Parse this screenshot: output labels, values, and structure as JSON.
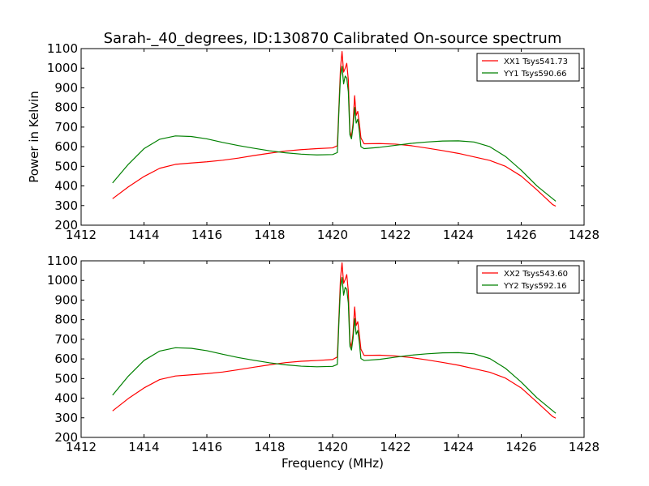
{
  "figure": {
    "title": "Sarah-_40_degrees, ID:130870 Calibrated On-source spectrum",
    "ylabel": "Power in Kelvin",
    "xlabel": "Frequency (MHz)"
  },
  "colors": {
    "xx": "#ff0000",
    "yy": "#008000",
    "axes": "#000000",
    "background": "#ffffff"
  },
  "chart_data": [
    {
      "type": "line",
      "title": "Sarah-_40_degrees, ID:130870 Calibrated On-source spectrum",
      "xlabel": "",
      "ylabel": "Power in Kelvin",
      "xlim": [
        1412,
        1428
      ],
      "ylim": [
        200,
        1100
      ],
      "x_ticks": [
        1412,
        1414,
        1416,
        1418,
        1420,
        1422,
        1424,
        1426,
        1428
      ],
      "y_ticks": [
        200,
        300,
        400,
        500,
        600,
        700,
        800,
        900,
        1000,
        1100
      ],
      "legend_position": "top-right",
      "grid": false,
      "series": [
        {
          "name": "XX1 Tsys541.73",
          "color": "#ff0000",
          "x": [
            1413.0,
            1413.5,
            1414.0,
            1414.5,
            1415.0,
            1415.5,
            1416.0,
            1416.5,
            1417.0,
            1417.5,
            1418.0,
            1418.5,
            1419.0,
            1419.5,
            1420.0,
            1420.15,
            1420.2,
            1420.25,
            1420.3,
            1420.35,
            1420.4,
            1420.45,
            1420.5,
            1420.55,
            1420.6,
            1420.65,
            1420.7,
            1420.75,
            1420.8,
            1420.85,
            1420.9,
            1421.0,
            1421.5,
            1422.0,
            1422.5,
            1423.0,
            1423.5,
            1424.0,
            1424.5,
            1425.0,
            1425.5,
            1426.0,
            1426.5,
            1427.0,
            1427.1
          ],
          "y": [
            335,
            395,
            448,
            490,
            510,
            517,
            523,
            531,
            542,
            555,
            567,
            578,
            585,
            590,
            594,
            605,
            800,
            1000,
            1085,
            980,
            1000,
            1025,
            940,
            680,
            650,
            720,
            860,
            760,
            780,
            720,
            645,
            615,
            616,
            613,
            605,
            593,
            580,
            566,
            548,
            530,
            500,
            450,
            380,
            305,
            297
          ]
        },
        {
          "name": "YY1 Tsys590.66",
          "color": "#008000",
          "x": [
            1413.0,
            1413.5,
            1414.0,
            1414.5,
            1415.0,
            1415.5,
            1416.0,
            1416.5,
            1417.0,
            1417.5,
            1418.0,
            1418.5,
            1419.0,
            1419.5,
            1420.0,
            1420.15,
            1420.2,
            1420.25,
            1420.3,
            1420.35,
            1420.4,
            1420.45,
            1420.5,
            1420.55,
            1420.6,
            1420.65,
            1420.7,
            1420.75,
            1420.8,
            1420.85,
            1420.9,
            1421.0,
            1421.5,
            1422.0,
            1422.5,
            1423.0,
            1423.5,
            1424.0,
            1424.5,
            1425.0,
            1425.5,
            1426.0,
            1426.5,
            1427.0,
            1427.1
          ],
          "y": [
            415,
            510,
            590,
            638,
            655,
            652,
            640,
            622,
            606,
            592,
            579,
            569,
            562,
            558,
            560,
            570,
            780,
            960,
            1010,
            920,
            960,
            950,
            880,
            660,
            640,
            700,
            800,
            720,
            740,
            680,
            600,
            590,
            597,
            607,
            617,
            624,
            629,
            630,
            624,
            600,
            550,
            480,
            400,
            335,
            322
          ]
        }
      ]
    },
    {
      "type": "line",
      "title": "",
      "xlabel": "Frequency (MHz)",
      "ylabel": "",
      "xlim": [
        1412,
        1428
      ],
      "ylim": [
        200,
        1100
      ],
      "x_ticks": [
        1412,
        1414,
        1416,
        1418,
        1420,
        1422,
        1424,
        1426,
        1428
      ],
      "y_ticks": [
        200,
        300,
        400,
        500,
        600,
        700,
        800,
        900,
        1000,
        1100
      ],
      "legend_position": "top-right",
      "grid": false,
      "series": [
        {
          "name": "XX2 Tsys543.60",
          "color": "#ff0000",
          "x": [
            1413.0,
            1413.5,
            1414.0,
            1414.5,
            1415.0,
            1415.5,
            1416.0,
            1416.5,
            1417.0,
            1417.5,
            1418.0,
            1418.5,
            1419.0,
            1419.5,
            1420.0,
            1420.15,
            1420.2,
            1420.25,
            1420.3,
            1420.35,
            1420.4,
            1420.45,
            1420.5,
            1420.55,
            1420.6,
            1420.65,
            1420.7,
            1420.75,
            1420.8,
            1420.85,
            1420.9,
            1421.0,
            1421.5,
            1422.0,
            1422.5,
            1423.0,
            1423.5,
            1424.0,
            1424.5,
            1425.0,
            1425.5,
            1426.0,
            1426.5,
            1427.0,
            1427.1
          ],
          "y": [
            335,
            398,
            452,
            495,
            513,
            519,
            525,
            533,
            545,
            558,
            570,
            581,
            588,
            592,
            597,
            610,
            810,
            1010,
            1090,
            985,
            1005,
            1030,
            945,
            690,
            660,
            730,
            865,
            770,
            790,
            725,
            650,
            618,
            619,
            615,
            607,
            595,
            582,
            568,
            550,
            532,
            502,
            452,
            380,
            306,
            298
          ]
        },
        {
          "name": "YY2 Tsys592.16",
          "color": "#008000",
          "x": [
            1413.0,
            1413.5,
            1414.0,
            1414.5,
            1415.0,
            1415.5,
            1416.0,
            1416.5,
            1417.0,
            1417.5,
            1418.0,
            1418.5,
            1419.0,
            1419.5,
            1420.0,
            1420.15,
            1420.2,
            1420.25,
            1420.3,
            1420.35,
            1420.4,
            1420.45,
            1420.5,
            1420.55,
            1420.6,
            1420.65,
            1420.7,
            1420.75,
            1420.8,
            1420.85,
            1420.9,
            1421.0,
            1421.5,
            1422.0,
            1422.5,
            1423.0,
            1423.5,
            1424.0,
            1424.5,
            1425.0,
            1425.5,
            1426.0,
            1426.5,
            1427.0,
            1427.1
          ],
          "y": [
            415,
            512,
            592,
            640,
            657,
            654,
            642,
            624,
            607,
            593,
            580,
            570,
            563,
            560,
            562,
            572,
            785,
            965,
            1015,
            925,
            965,
            955,
            885,
            665,
            645,
            705,
            805,
            725,
            745,
            685,
            602,
            592,
            598,
            609,
            619,
            626,
            631,
            632,
            626,
            602,
            552,
            482,
            402,
            336,
            323
          ]
        }
      ]
    }
  ]
}
